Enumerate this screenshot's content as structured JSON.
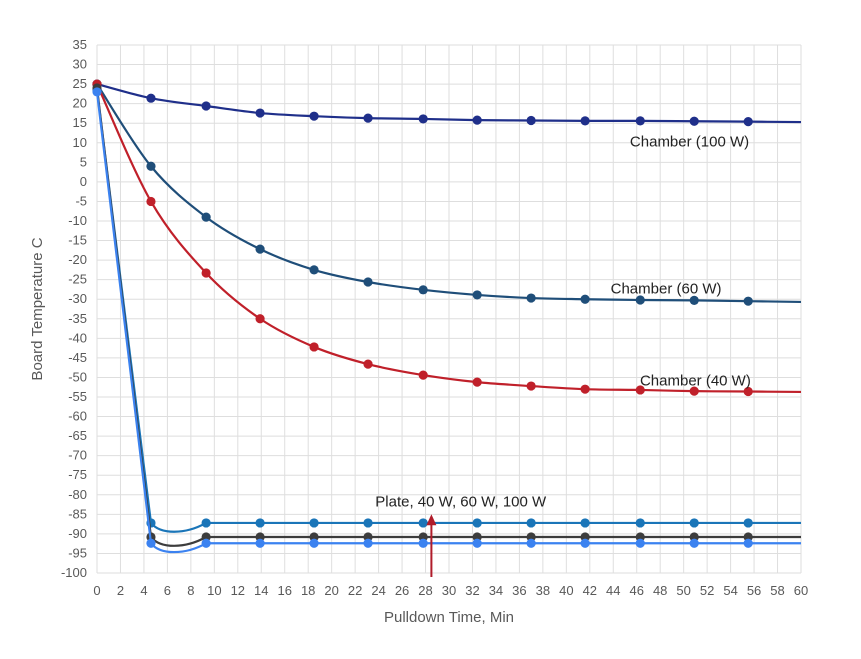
{
  "chart_data": {
    "type": "line",
    "title": "",
    "xlabel": "Pulldown Time, Min",
    "ylabel": "Board Temperature C",
    "xlim": [
      0,
      60
    ],
    "ylim": [
      -100,
      35
    ],
    "xticks": [
      "0",
      "2",
      "4",
      "6",
      "8",
      "10",
      "12",
      "14",
      "16",
      "18",
      "20",
      "22",
      "24",
      "26",
      "28",
      "30",
      "32",
      "34",
      "36",
      "38",
      "40",
      "42",
      "44",
      "46",
      "48",
      "50",
      "52",
      "54",
      "56",
      "58",
      "60"
    ],
    "yticks": [
      "35",
      "30",
      "25",
      "20",
      "15",
      "10",
      "5",
      "0",
      "-5",
      "-10",
      "-15",
      "-20",
      "-25",
      "-30",
      "-35",
      "-40",
      "-45",
      "-50",
      "-55",
      "-60",
      "-65",
      "-70",
      "-75",
      "-80",
      "-85",
      "-90",
      "-95",
      "-100"
    ],
    "grid": true,
    "x": [
      0,
      4.6,
      9.3,
      13.9,
      18.5,
      23.1,
      27.8,
      32.4,
      37.0,
      41.6,
      46.3,
      50.9,
      55.5,
      60
    ],
    "series": [
      {
        "name": "Chamber (100 W)",
        "color": "#1f2f8a",
        "values": [
          25,
          21.4,
          19.4,
          17.6,
          16.8,
          16.3,
          16.1,
          15.8,
          15.7,
          15.6,
          15.6,
          15.5,
          15.4,
          15.3
        ]
      },
      {
        "name": "Chamber (60 W)",
        "color": "#1f4e79",
        "values": [
          25,
          4,
          -9,
          -17.2,
          -22.5,
          -25.6,
          -27.6,
          -28.9,
          -29.7,
          -30,
          -30.2,
          -30.3,
          -30.5,
          -30.7
        ]
      },
      {
        "name": "Chamber (40 W)",
        "color": "#c0202a",
        "values": [
          25,
          -5,
          -23.3,
          -35,
          -42.2,
          -46.6,
          -49.4,
          -51.2,
          -52.2,
          -53,
          -53.2,
          -53.5,
          -53.6,
          -53.7
        ]
      },
      {
        "name": "Plate 100 W",
        "color": "#1a75b8",
        "values": [
          23.5,
          -87.2,
          -87.2,
          -87.2,
          -87.2,
          -87.2,
          -87.2,
          -87.2,
          -87.2,
          -87.2,
          -87.2,
          -87.2,
          -87.2,
          -87.2
        ]
      },
      {
        "name": "Plate 60 W",
        "color": "#3d3d3d",
        "values": [
          24,
          -90.8,
          -90.8,
          -90.8,
          -90.8,
          -90.8,
          -90.8,
          -90.8,
          -90.8,
          -90.8,
          -90.8,
          -90.8,
          -90.8,
          -90.8
        ]
      },
      {
        "name": "Plate 40 W",
        "color": "#3b82f0",
        "values": [
          23,
          -92.4,
          -92.4,
          -92.4,
          -92.4,
          -92.4,
          -92.4,
          -92.4,
          -92.4,
          -92.4,
          -92.4,
          -92.4,
          -92.4,
          -92.4
        ]
      }
    ],
    "annotations": [
      {
        "text": "Chamber (100 W)",
        "x": 50.5,
        "y": 9
      },
      {
        "text": "Chamber (60 W)",
        "x": 48.5,
        "y": -28.5
      },
      {
        "text": "Chamber (40 W)",
        "x": 51,
        "y": -52
      },
      {
        "text": "Plate, 40 W, 60 W, 100 W",
        "x": 31,
        "y": -83
      }
    ],
    "arrow": {
      "x": 28.5,
      "from": -100,
      "to": -85.5,
      "color": "#b01c2a"
    }
  }
}
